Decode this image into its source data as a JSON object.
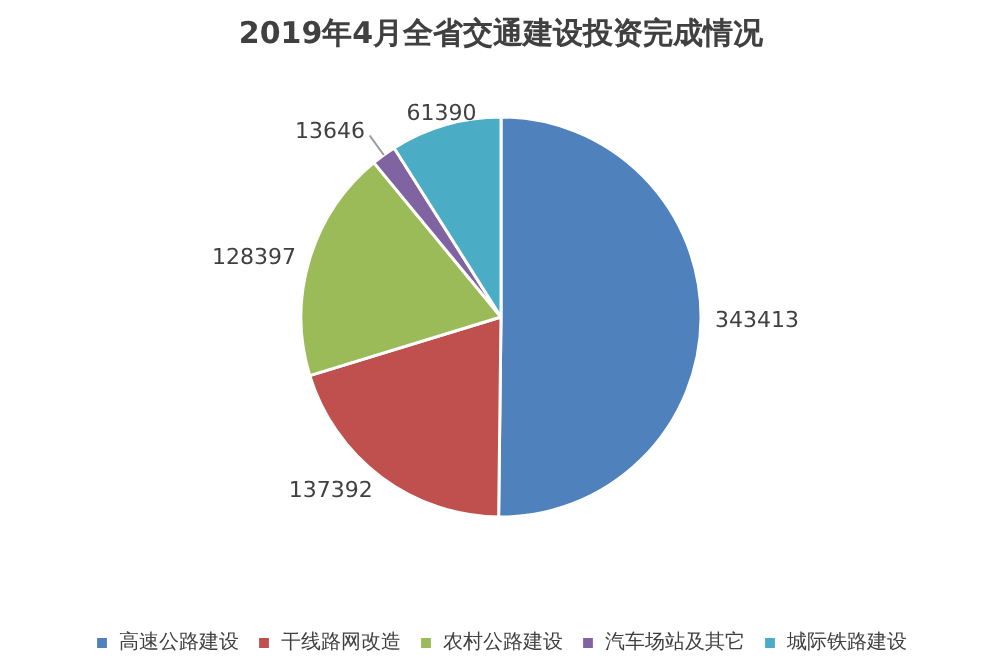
{
  "chart_data": {
    "type": "pie",
    "title": "2019年4月全省交通建设投资完成情况",
    "categories": [
      "高速公路建设",
      "干线路网改造",
      "农村公路建设",
      "汽车场站及其它",
      "城际铁路建设"
    ],
    "values": [
      343413,
      137392,
      128397,
      13646,
      61390
    ],
    "colors": [
      "#4f81bd",
      "#c0504d",
      "#9bbb59",
      "#8064a2",
      "#4bacc6"
    ],
    "data_labels": true,
    "legend": "bottom"
  }
}
